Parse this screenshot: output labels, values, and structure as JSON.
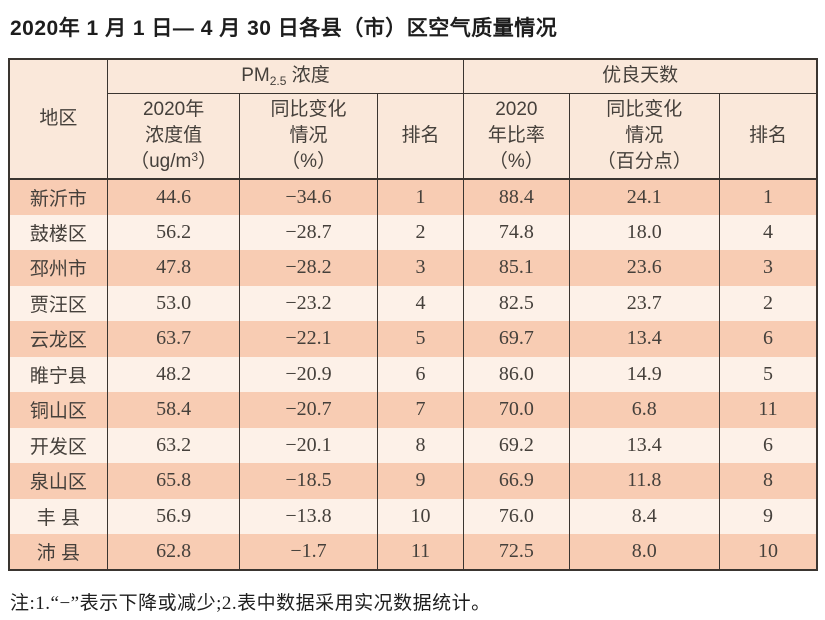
{
  "title": "2020年 1 月 1 日— 4 月 30 日各县（市）区空气质量情况",
  "table": {
    "header": {
      "region": "地区",
      "pm25_group": {
        "prefix": "PM",
        "sub": "2.5",
        "suffix": " 浓度"
      },
      "good_days_group": "优良天数",
      "pm25_value": {
        "line1": "2020年",
        "line2": "浓度值",
        "line3_prefix": "（ug/m",
        "line3_sup": "3",
        "line3_suffix": "）"
      },
      "pm25_change": {
        "line1": "同比变化",
        "line2": "情况",
        "line3": "（%）"
      },
      "pm25_rank": "排名",
      "good_ratio": {
        "line1": "2020",
        "line2": "年比率",
        "line3": "（%）"
      },
      "good_change": {
        "line1": "同比变化",
        "line2": "情况",
        "line3": "（百分点）"
      },
      "good_rank": "排名"
    },
    "rows": [
      {
        "region": "新沂市",
        "pm25_value": "44.6",
        "pm25_change": "−34.6",
        "pm25_rank": "1",
        "good_ratio": "88.4",
        "good_change": "24.1",
        "good_rank": "1"
      },
      {
        "region": "鼓楼区",
        "pm25_value": "56.2",
        "pm25_change": "−28.7",
        "pm25_rank": "2",
        "good_ratio": "74.8",
        "good_change": "18.0",
        "good_rank": "4"
      },
      {
        "region": "邳州市",
        "pm25_value": "47.8",
        "pm25_change": "−28.2",
        "pm25_rank": "3",
        "good_ratio": "85.1",
        "good_change": "23.6",
        "good_rank": "3"
      },
      {
        "region": "贾汪区",
        "pm25_value": "53.0",
        "pm25_change": "−23.2",
        "pm25_rank": "4",
        "good_ratio": "82.5",
        "good_change": "23.7",
        "good_rank": "2"
      },
      {
        "region": "云龙区",
        "pm25_value": "63.7",
        "pm25_change": "−22.1",
        "pm25_rank": "5",
        "good_ratio": "69.7",
        "good_change": "13.4",
        "good_rank": "6"
      },
      {
        "region": "睢宁县",
        "pm25_value": "48.2",
        "pm25_change": "−20.9",
        "pm25_rank": "6",
        "good_ratio": "86.0",
        "good_change": "14.9",
        "good_rank": "5"
      },
      {
        "region": "铜山区",
        "pm25_value": "58.4",
        "pm25_change": "−20.7",
        "pm25_rank": "7",
        "good_ratio": "70.0",
        "good_change": "6.8",
        "good_rank": "11"
      },
      {
        "region": "开发区",
        "pm25_value": "63.2",
        "pm25_change": "−20.1",
        "pm25_rank": "8",
        "good_ratio": "69.2",
        "good_change": "13.4",
        "good_rank": "6"
      },
      {
        "region": "泉山区",
        "pm25_value": "65.8",
        "pm25_change": "−18.5",
        "pm25_rank": "9",
        "good_ratio": "66.9",
        "good_change": "11.8",
        "good_rank": "8"
      },
      {
        "region": "丰 县",
        "pm25_value": "56.9",
        "pm25_change": "−13.8",
        "pm25_rank": "10",
        "good_ratio": "76.0",
        "good_change": "8.4",
        "good_rank": "9"
      },
      {
        "region": "沛 县",
        "pm25_value": "62.8",
        "pm25_change": "−1.7",
        "pm25_rank": "11",
        "good_ratio": "72.5",
        "good_change": "8.0",
        "good_rank": "10"
      }
    ]
  },
  "note": "注:1.“−”表示下降或减少;2.表中数据采用实况数据统计。",
  "colors": {
    "header_bg": "#fae8da",
    "row_odd_bg": "#f8ccb3",
    "row_even_bg": "#fdf1e8",
    "border": "#3a3530"
  }
}
